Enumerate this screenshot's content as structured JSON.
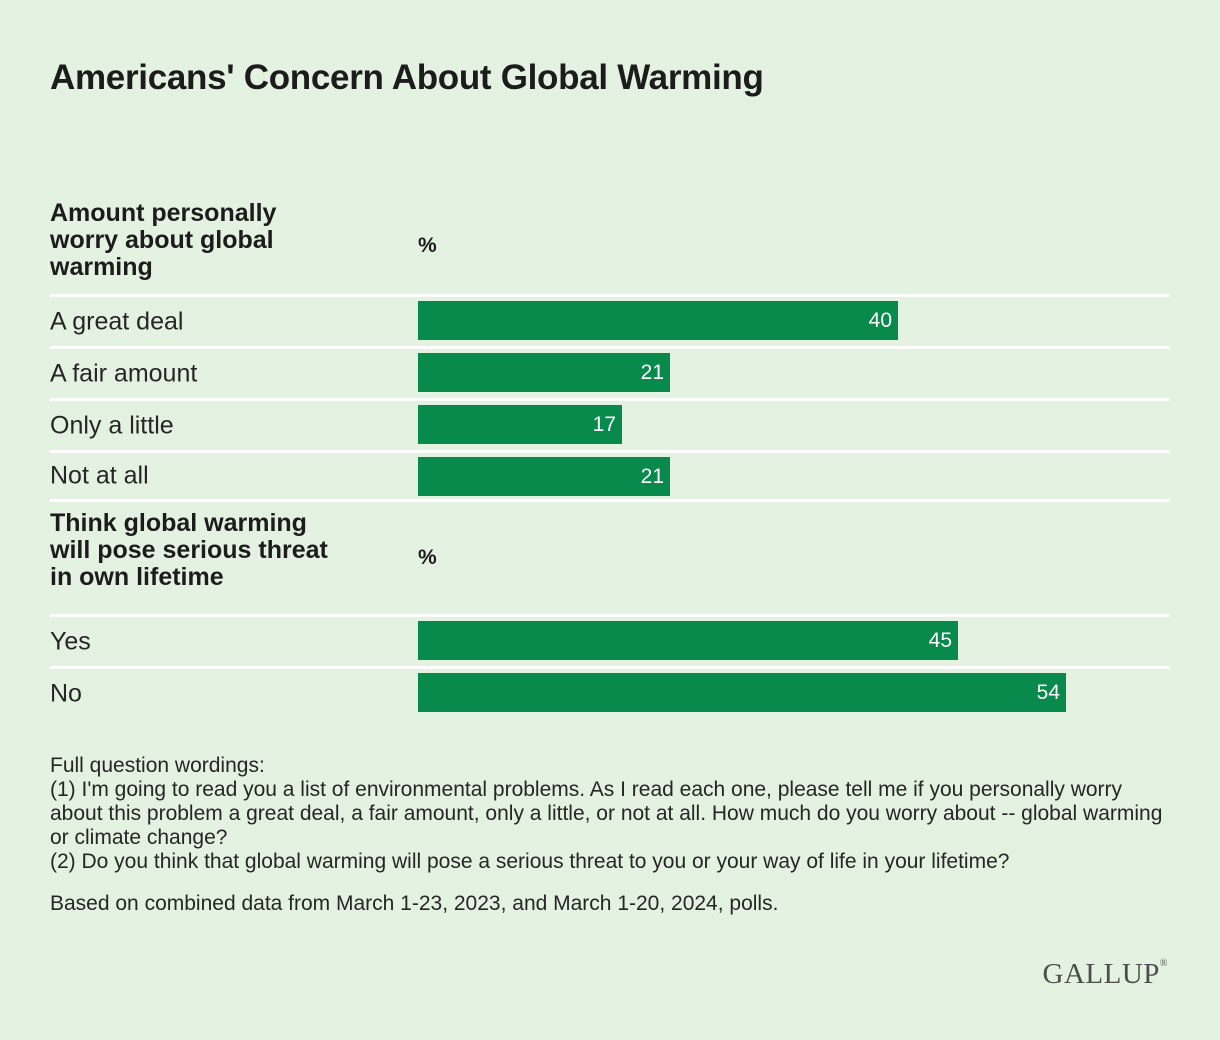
{
  "title": "Americans' Concern About Global Warming",
  "chart_data": {
    "type": "bar",
    "orientation": "horizontal",
    "title": "Americans' Concern About Global Warming",
    "xlim": [
      0,
      100
    ],
    "sections": [
      {
        "heading": "Amount personally worry about global warming",
        "unit_label": "%",
        "categories": [
          "A great deal",
          "A fair amount",
          "Only a little",
          "Not at all"
        ],
        "values": [
          40,
          21,
          17,
          21
        ]
      },
      {
        "heading": "Think global warming will pose serious threat in own lifetime",
        "unit_label": "%",
        "categories": [
          "Yes",
          "No"
        ],
        "values": [
          45,
          54
        ]
      }
    ]
  },
  "notes": {
    "lines": [
      "Full question wordings:",
      "(1) I'm going to read you a list of environmental problems. As I read each one, please tell me if you personally worry about this problem a great deal, a fair amount, only a little, or not at all. How much do you worry about -- global warming or climate change?",
      "(2) Do you think that global warming will pose a serious threat to you or your way of life in your lifetime?"
    ],
    "basis": "Based on combined data from March 1-23, 2023, and March 1-20, 2024, polls."
  },
  "logo": {
    "text": "GALLUP",
    "mark": "®"
  },
  "colors": {
    "background": "#e4f2e1",
    "bar": "#078a4b",
    "divider": "#ffffff"
  }
}
